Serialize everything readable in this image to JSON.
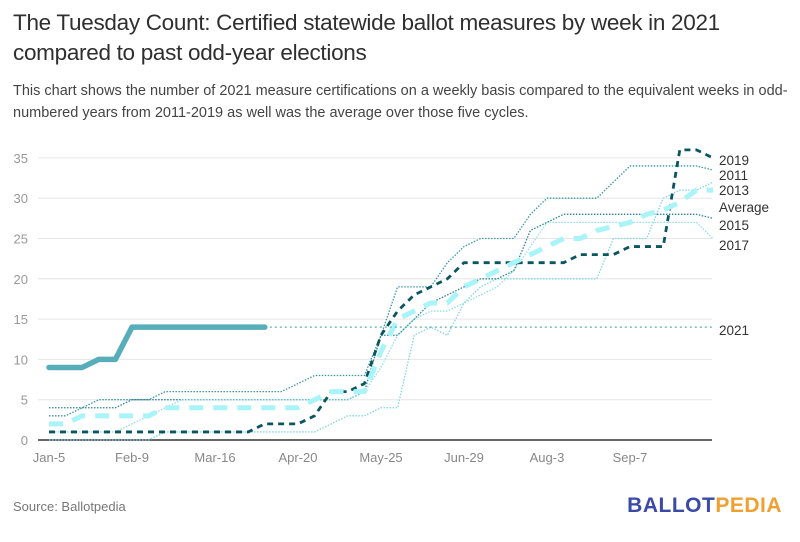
{
  "title": "The Tuesday Count: Certified statewide ballot measures by week in 2021 compared to past odd-year elections",
  "subtitle": "This chart shows the number of 2021 measure certifications on a weekly basis compared to the equivalent weeks in odd-numbered years from 2011-2019 as well was the average over those five cycles.",
  "source": "Source: Ballotpedia",
  "logo": {
    "part1": "BALLOT",
    "part2": "PEDIA",
    "color1": "#3b4aa7",
    "color2": "#f0a030"
  },
  "chart_data": {
    "type": "line",
    "title": "The Tuesday Count: Certified statewide ballot measures by week in 2021 compared to past odd-year elections",
    "xlabel": "",
    "ylabel": "",
    "ylim": [
      0,
      35
    ],
    "yticks": [
      0,
      5,
      10,
      15,
      20,
      25,
      30,
      35
    ],
    "grid": true,
    "legend": "right (direct labels at line ends)",
    "x_tick_labels": [
      {
        "week": 0,
        "label": "Jan-5"
      },
      {
        "week": 5,
        "label": "Feb-9"
      },
      {
        "week": 10,
        "label": "Mar-16"
      },
      {
        "week": 15,
        "label": "Apr-20"
      },
      {
        "week": 20,
        "label": "May-25"
      },
      {
        "week": 25,
        "label": "Jun-29"
      },
      {
        "week": 30,
        "label": "Aug-3"
      },
      {
        "week": 35,
        "label": "Sep-7"
      }
    ],
    "x_weeks": 41,
    "series": [
      {
        "name": "2011",
        "style": "dotted",
        "color": "#3a97a6",
        "values": [
          3,
          3,
          4,
          5,
          5,
          5,
          5,
          6,
          6,
          6,
          6,
          6,
          6,
          6,
          6,
          7,
          8,
          8,
          8,
          8,
          13,
          19,
          19,
          19,
          22,
          24,
          25,
          25,
          25,
          28,
          30,
          30,
          30,
          30,
          32,
          34,
          34,
          34,
          34,
          34,
          33.5
        ]
      },
      {
        "name": "2013",
        "style": "dotted",
        "color": "#7fd6e4",
        "values": [
          0,
          0,
          0,
          0,
          0,
          0,
          0,
          1,
          1,
          1,
          1,
          1,
          1,
          1,
          1,
          1,
          1,
          2,
          3,
          3,
          4,
          4,
          13,
          14,
          13,
          17,
          19,
          20,
          20,
          20,
          20,
          20,
          20,
          20,
          25,
          25,
          25,
          30,
          31,
          31,
          32
        ]
      },
      {
        "name": "2015",
        "style": "dotted",
        "color": "#2f8494",
        "values": [
          4,
          4,
          4,
          4,
          4,
          5,
          5,
          5,
          5,
          5,
          5,
          5,
          5,
          5,
          5,
          5,
          5,
          5,
          5,
          6,
          13,
          13,
          15,
          17,
          18,
          19,
          20,
          20,
          21,
          26,
          27,
          28,
          28,
          28,
          28,
          28,
          28,
          28,
          28,
          28,
          27.5
        ]
      },
      {
        "name": "2017",
        "style": "dotted",
        "color": "#8fe0ea",
        "values": [
          1,
          1,
          1,
          1,
          1,
          2,
          3,
          4,
          5,
          5,
          5,
          5,
          5,
          5,
          5,
          5,
          5,
          5,
          5,
          6,
          9,
          13,
          15,
          16,
          16,
          17,
          18,
          19,
          21,
          24,
          27,
          27,
          27,
          27,
          27,
          27,
          27,
          27,
          27,
          27,
          25
        ]
      },
      {
        "name": "2019",
        "style": "dashed",
        "color": "#0b5561",
        "values": [
          1,
          1,
          1,
          1,
          1,
          1,
          1,
          1,
          1,
          1,
          1,
          1,
          1,
          2,
          2,
          2,
          3,
          6,
          6,
          7,
          13,
          16,
          18,
          19,
          20,
          22,
          22,
          22,
          22,
          22,
          22,
          22,
          23,
          23,
          23,
          24,
          24,
          24,
          36,
          36,
          35
        ]
      },
      {
        "name": "Average",
        "style": "thick-dashed",
        "color": "#a9f4f8",
        "values": [
          2,
          2,
          3,
          3,
          3,
          3,
          3,
          4,
          4,
          4,
          4,
          4,
          4,
          4,
          4,
          4,
          5,
          6,
          6,
          6,
          11,
          15,
          16,
          17,
          17,
          19,
          20,
          21,
          22,
          23,
          24,
          25,
          25,
          26,
          26.5,
          27,
          28,
          28.5,
          29.5,
          31,
          31
        ]
      },
      {
        "name": "2021",
        "style": "solid",
        "color": "#58adba",
        "values": [
          9,
          9,
          9,
          10,
          10,
          14,
          14,
          14,
          14,
          14,
          14,
          14,
          14,
          14
        ]
      },
      {
        "name": "2021",
        "style": "dotted-projection",
        "color": "#58adba",
        "values_from_week": 13,
        "value": 14
      }
    ],
    "end_labels": [
      {
        "series": "2019",
        "label": "2019"
      },
      {
        "series": "2011",
        "label": "2011"
      },
      {
        "series": "2013",
        "label": "2013"
      },
      {
        "series": "Average",
        "label": "Average"
      },
      {
        "series": "2015",
        "label": "2015"
      },
      {
        "series": "2017",
        "label": "2017"
      },
      {
        "series": "2021",
        "label": "2021"
      }
    ]
  }
}
